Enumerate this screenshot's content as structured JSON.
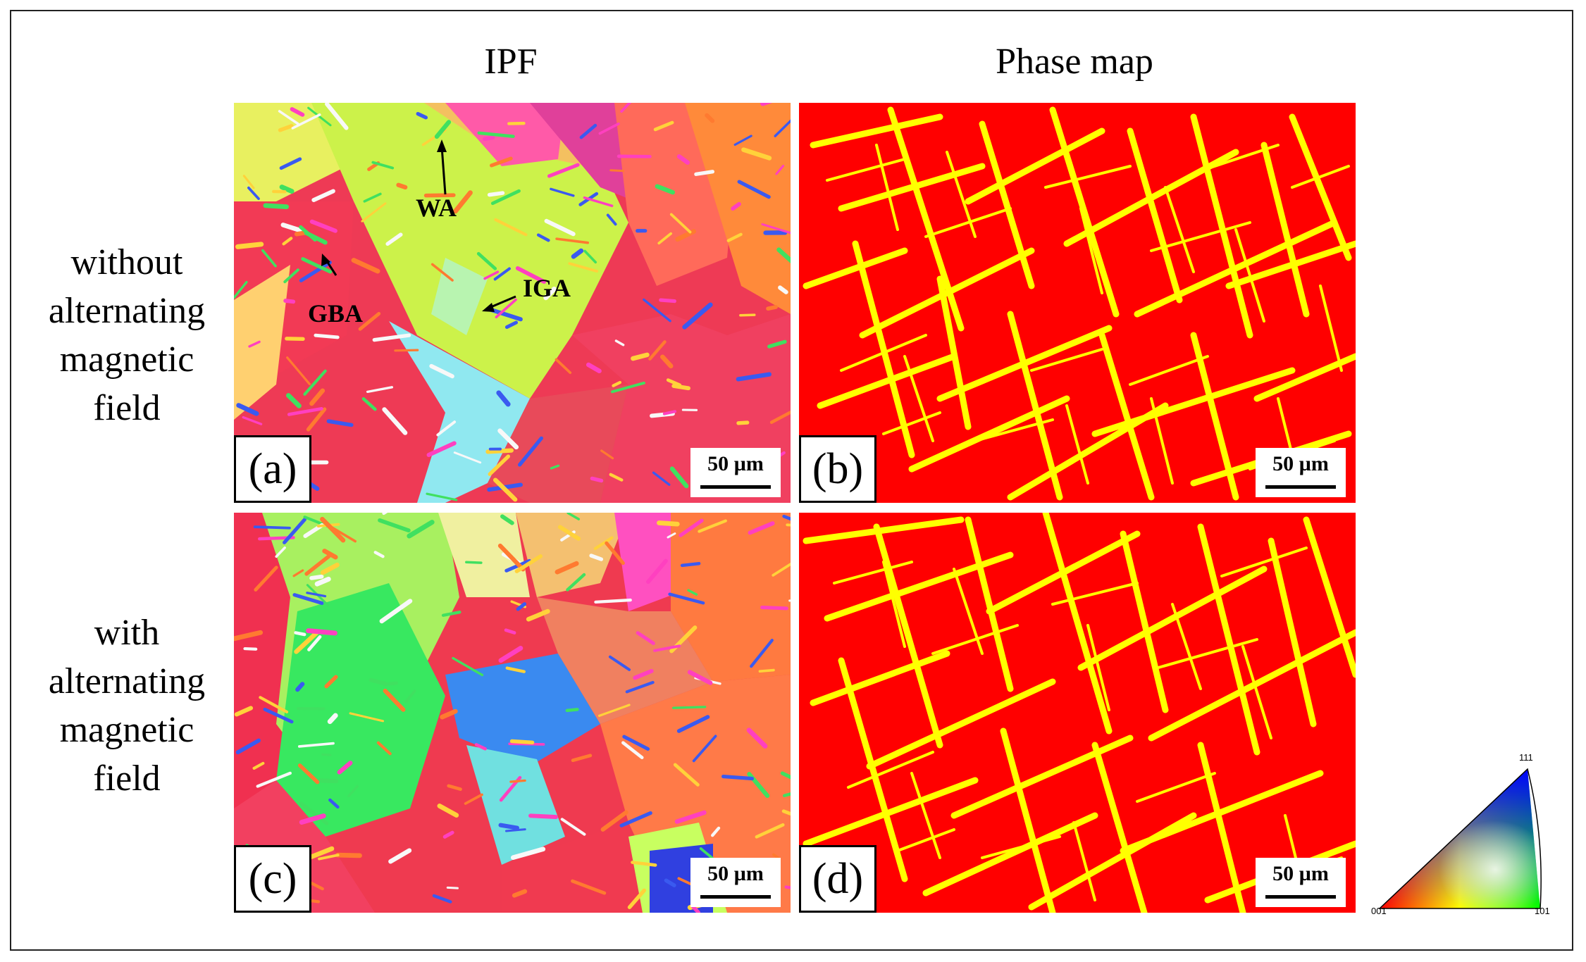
{
  "figure": {
    "col_titles": [
      "IPF",
      "Phase map"
    ],
    "row_labels": [
      [
        "without",
        "alternating",
        "magnetic",
        "field"
      ],
      [
        "with",
        "alternating",
        "magnetic",
        "field"
      ]
    ],
    "panels": [
      {
        "letter": "(a)",
        "scale": "50 µm",
        "kind": "ipf"
      },
      {
        "letter": "(b)",
        "scale": "50 µm",
        "kind": "phase"
      },
      {
        "letter": "(c)",
        "scale": "50 µm",
        "kind": "ipf"
      },
      {
        "letter": "(d)",
        "scale": "50 µm",
        "kind": "phase"
      }
    ],
    "annotations": [
      "WA",
      "GBA",
      "IGA"
    ],
    "legend": {
      "corner_001": "001",
      "corner_101": "101",
      "corner_111": "111"
    },
    "colors": {
      "phase_bg": "#ff0000",
      "phase_fg": "#ffff00"
    }
  }
}
